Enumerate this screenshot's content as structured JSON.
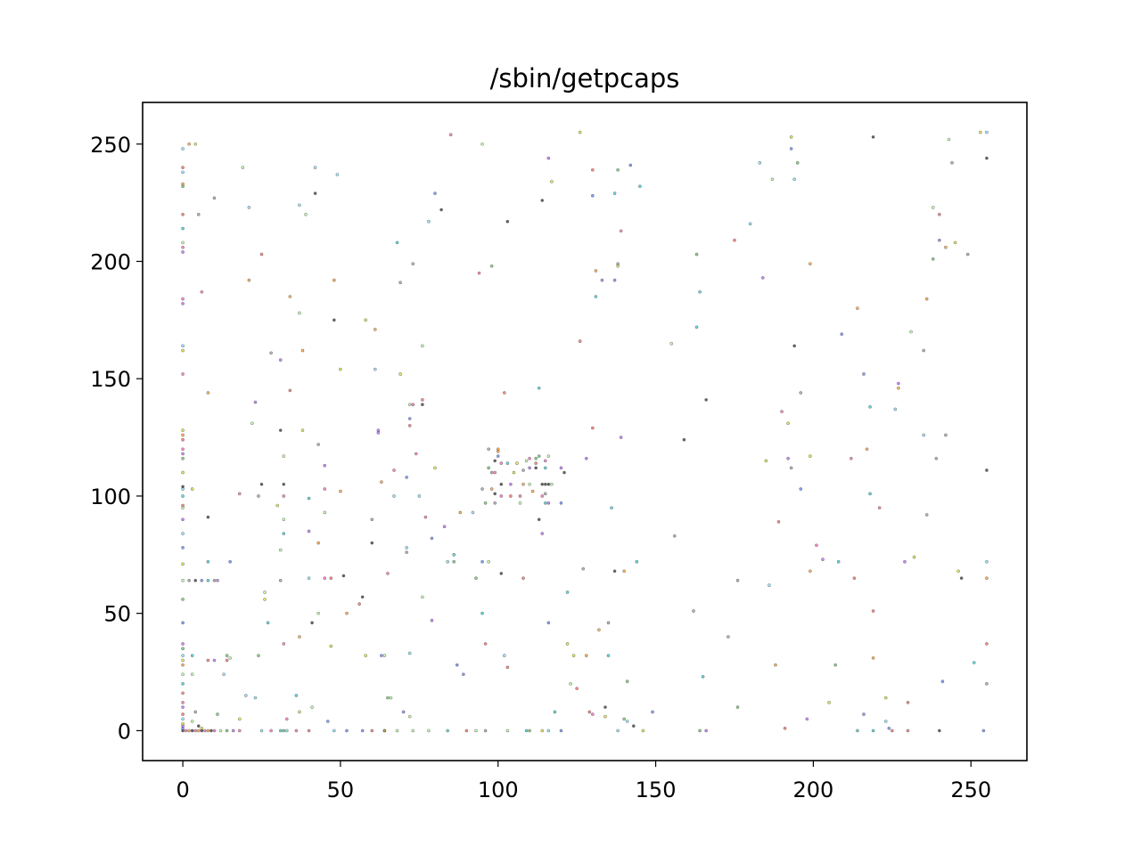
{
  "chart_data": {
    "type": "scatter",
    "title": "/sbin/getpcaps",
    "xlabel": "",
    "ylabel": "",
    "xlim": [
      -12.75,
      267.75
    ],
    "ylim": [
      -12.75,
      267.75
    ],
    "xticks": [
      0,
      50,
      100,
      150,
      200,
      250
    ],
    "yticks": [
      0,
      50,
      100,
      150,
      200,
      250
    ],
    "grid": false,
    "legend": "none",
    "marker_edge_color": "#333333",
    "marker_face_colors": [
      "#000000",
      "#ff4444",
      "#44bb44",
      "#4466ff",
      "#ff8800",
      "#aa44ff",
      "#00cccc",
      "#dddd00",
      "#ff44aa",
      "#888888",
      "#66ddff",
      "#aaff88"
    ],
    "points": [
      [
        0,
        0
      ],
      [
        1,
        0
      ],
      [
        2,
        0
      ],
      [
        3,
        0
      ],
      [
        4,
        0
      ],
      [
        5,
        0
      ],
      [
        6,
        0
      ],
      [
        7,
        0
      ],
      [
        8,
        0
      ],
      [
        9,
        0
      ],
      [
        10,
        0
      ],
      [
        12,
        0
      ],
      [
        14,
        0
      ],
      [
        16,
        0
      ],
      [
        18,
        0
      ],
      [
        25,
        0
      ],
      [
        28,
        0
      ],
      [
        31,
        0
      ],
      [
        32,
        0
      ],
      [
        33,
        0
      ],
      [
        36,
        0
      ],
      [
        40,
        0
      ],
      [
        48,
        0
      ],
      [
        52,
        0
      ],
      [
        57,
        0
      ],
      [
        60,
        0
      ],
      [
        64,
        0
      ],
      [
        68,
        0
      ],
      [
        73,
        0
      ],
      [
        78,
        0
      ],
      [
        84,
        0
      ],
      [
        90,
        0
      ],
      [
        93,
        0
      ],
      [
        96,
        0
      ],
      [
        103,
        0
      ],
      [
        109,
        0
      ],
      [
        110,
        0
      ],
      [
        114,
        0
      ],
      [
        116,
        0
      ],
      [
        120,
        0
      ],
      [
        138,
        0
      ],
      [
        146,
        0
      ],
      [
        164,
        0
      ],
      [
        166,
        0
      ],
      [
        214,
        0
      ],
      [
        219,
        0
      ],
      [
        225,
        0
      ],
      [
        230,
        0
      ],
      [
        240,
        0
      ],
      [
        254,
        0
      ],
      [
        0,
        1
      ],
      [
        0,
        2
      ],
      [
        0,
        3
      ],
      [
        0,
        5
      ],
      [
        0,
        7
      ],
      [
        0,
        10
      ],
      [
        0,
        12
      ],
      [
        0,
        16
      ],
      [
        0,
        20
      ],
      [
        0,
        24
      ],
      [
        0,
        28
      ],
      [
        0,
        30
      ],
      [
        0,
        32
      ],
      [
        0,
        35
      ],
      [
        0,
        37
      ],
      [
        0,
        46
      ],
      [
        0,
        56
      ],
      [
        0,
        64
      ],
      [
        0,
        71
      ],
      [
        0,
        78
      ],
      [
        0,
        84
      ],
      [
        0,
        90
      ],
      [
        0,
        95
      ],
      [
        0,
        96
      ],
      [
        0,
        100
      ],
      [
        0,
        103
      ],
      [
        0,
        104
      ],
      [
        0,
        110
      ],
      [
        0,
        116
      ],
      [
        0,
        118
      ],
      [
        0,
        120
      ],
      [
        0,
        124
      ],
      [
        0,
        126
      ],
      [
        0,
        128
      ],
      [
        0,
        152
      ],
      [
        0,
        162
      ],
      [
        0,
        164
      ],
      [
        0,
        182
      ],
      [
        0,
        184
      ],
      [
        0,
        204
      ],
      [
        0,
        206
      ],
      [
        0,
        208
      ],
      [
        0,
        214
      ],
      [
        0,
        220
      ],
      [
        0,
        232
      ],
      [
        0,
        233
      ],
      [
        0,
        238
      ],
      [
        0,
        240
      ],
      [
        0,
        248
      ],
      [
        2,
        64
      ],
      [
        4,
        64
      ],
      [
        6,
        64
      ],
      [
        8,
        64
      ],
      [
        10,
        64
      ],
      [
        11,
        64
      ],
      [
        4,
        8
      ],
      [
        3,
        4
      ],
      [
        5,
        2
      ],
      [
        6,
        1
      ],
      [
        3,
        32
      ],
      [
        3,
        24
      ],
      [
        3,
        103
      ],
      [
        2,
        250
      ],
      [
        4,
        250
      ],
      [
        5,
        220
      ],
      [
        6,
        187
      ],
      [
        8,
        144
      ],
      [
        8,
        91
      ],
      [
        8,
        72
      ],
      [
        8,
        30
      ],
      [
        10,
        227
      ],
      [
        10,
        30
      ],
      [
        11,
        7
      ],
      [
        13,
        24
      ],
      [
        14,
        32
      ],
      [
        14,
        30
      ],
      [
        15,
        72
      ],
      [
        15,
        31
      ],
      [
        18,
        5
      ],
      [
        18,
        101
      ],
      [
        19,
        240
      ],
      [
        20,
        15
      ],
      [
        21,
        223
      ],
      [
        21,
        192
      ],
      [
        22,
        131
      ],
      [
        23,
        14
      ],
      [
        23,
        140
      ],
      [
        24,
        100
      ],
      [
        24,
        32
      ],
      [
        25,
        203
      ],
      [
        25,
        105
      ],
      [
        26,
        56
      ],
      [
        26,
        59
      ],
      [
        27,
        46
      ],
      [
        28,
        161
      ],
      [
        30,
        96
      ],
      [
        31,
        158
      ],
      [
        31,
        128
      ],
      [
        31,
        64
      ],
      [
        31,
        77
      ],
      [
        32,
        117
      ],
      [
        32,
        105
      ],
      [
        32,
        100
      ],
      [
        32,
        90
      ],
      [
        32,
        84
      ],
      [
        32,
        37
      ],
      [
        33,
        5
      ],
      [
        34,
        185
      ],
      [
        34,
        145
      ],
      [
        36,
        15
      ],
      [
        37,
        8
      ],
      [
        37,
        40
      ],
      [
        37,
        178
      ],
      [
        37,
        224
      ],
      [
        38,
        162
      ],
      [
        38,
        128
      ],
      [
        39,
        220
      ],
      [
        40,
        99
      ],
      [
        40,
        85
      ],
      [
        40,
        65
      ],
      [
        41,
        10
      ],
      [
        41,
        46
      ],
      [
        42,
        240
      ],
      [
        42,
        229
      ],
      [
        43,
        122
      ],
      [
        43,
        80
      ],
      [
        43,
        50
      ],
      [
        45,
        113
      ],
      [
        45,
        103
      ],
      [
        45,
        93
      ],
      [
        45,
        65
      ],
      [
        46,
        4
      ],
      [
        47,
        36
      ],
      [
        47,
        65
      ],
      [
        48,
        192
      ],
      [
        48,
        175
      ],
      [
        49,
        237
      ],
      [
        50,
        154
      ],
      [
        50,
        102
      ],
      [
        51,
        66
      ],
      [
        52,
        50
      ],
      [
        56,
        54
      ],
      [
        57,
        57
      ],
      [
        58,
        32
      ],
      [
        58,
        175
      ],
      [
        60,
        90
      ],
      [
        60,
        80
      ],
      [
        61,
        154
      ],
      [
        61,
        171
      ],
      [
        62,
        128
      ],
      [
        62,
        127
      ],
      [
        63,
        106
      ],
      [
        63,
        32
      ],
      [
        64,
        32
      ],
      [
        64,
        0
      ],
      [
        65,
        14
      ],
      [
        65,
        67
      ],
      [
        66,
        14
      ],
      [
        67,
        111
      ],
      [
        67,
        100
      ],
      [
        68,
        208
      ],
      [
        69,
        191
      ],
      [
        69,
        152
      ],
      [
        70,
        8
      ],
      [
        71,
        108
      ],
      [
        71,
        78
      ],
      [
        71,
        76
      ],
      [
        72,
        33
      ],
      [
        72,
        133
      ],
      [
        72,
        130
      ],
      [
        72,
        139
      ],
      [
        72,
        6
      ],
      [
        73,
        139
      ],
      [
        73,
        199
      ],
      [
        74,
        118
      ],
      [
        75,
        100
      ],
      [
        76,
        57
      ],
      [
        76,
        164
      ],
      [
        76,
        141
      ],
      [
        76,
        139
      ],
      [
        77,
        91
      ],
      [
        78,
        217
      ],
      [
        79,
        82
      ],
      [
        79,
        47
      ],
      [
        80,
        229
      ],
      [
        80,
        112
      ],
      [
        82,
        222
      ],
      [
        83,
        87
      ],
      [
        84,
        72
      ],
      [
        85,
        254
      ],
      [
        86,
        72
      ],
      [
        86,
        75
      ],
      [
        87,
        28
      ],
      [
        88,
        93
      ],
      [
        89,
        24
      ],
      [
        92,
        93
      ],
      [
        93,
        65
      ],
      [
        94,
        195
      ],
      [
        95,
        250
      ],
      [
        95,
        103
      ],
      [
        95,
        72
      ],
      [
        95,
        50
      ],
      [
        96,
        37
      ],
      [
        96,
        97
      ],
      [
        97,
        120
      ],
      [
        97,
        112
      ],
      [
        97,
        72
      ],
      [
        98,
        110
      ],
      [
        98,
        198
      ],
      [
        98,
        103
      ],
      [
        99,
        115
      ],
      [
        99,
        110
      ],
      [
        99,
        101
      ],
      [
        99,
        97
      ],
      [
        100,
        120
      ],
      [
        100,
        119
      ],
      [
        100,
        117
      ],
      [
        101,
        114
      ],
      [
        101,
        105
      ],
      [
        101,
        100
      ],
      [
        101,
        67
      ],
      [
        102,
        144
      ],
      [
        102,
        32
      ],
      [
        103,
        27
      ],
      [
        103,
        217
      ],
      [
        103,
        114
      ],
      [
        104,
        105
      ],
      [
        104,
        100
      ],
      [
        105,
        110
      ],
      [
        106,
        114
      ],
      [
        107,
        100
      ],
      [
        107,
        97
      ],
      [
        108,
        111
      ],
      [
        108,
        105
      ],
      [
        108,
        65
      ],
      [
        109,
        115
      ],
      [
        110,
        116
      ],
      [
        110,
        112
      ],
      [
        110,
        105
      ],
      [
        111,
        102
      ],
      [
        112,
        116
      ],
      [
        112,
        114
      ],
      [
        112,
        112
      ],
      [
        113,
        146
      ],
      [
        113,
        117
      ],
      [
        113,
        90
      ],
      [
        114,
        226
      ],
      [
        114,
        105
      ],
      [
        114,
        100
      ],
      [
        114,
        84
      ],
      [
        115,
        115
      ],
      [
        115,
        112
      ],
      [
        115,
        105
      ],
      [
        115,
        101
      ],
      [
        115,
        97
      ],
      [
        116,
        244
      ],
      [
        116,
        117
      ],
      [
        116,
        105
      ],
      [
        116,
        97
      ],
      [
        116,
        46
      ],
      [
        117,
        234
      ],
      [
        117,
        105
      ],
      [
        118,
        8
      ],
      [
        120,
        112
      ],
      [
        120,
        97
      ],
      [
        121,
        110
      ],
      [
        122,
        37
      ],
      [
        122,
        59
      ],
      [
        123,
        20
      ],
      [
        124,
        32
      ],
      [
        125,
        18
      ],
      [
        126,
        166
      ],
      [
        126,
        255
      ],
      [
        127,
        69
      ],
      [
        128,
        32
      ],
      [
        128,
        116
      ],
      [
        129,
        8
      ],
      [
        130,
        7
      ],
      [
        130,
        239
      ],
      [
        130,
        228
      ],
      [
        130,
        129
      ],
      [
        131,
        196
      ],
      [
        131,
        185
      ],
      [
        132,
        43
      ],
      [
        133,
        192
      ],
      [
        134,
        6
      ],
      [
        134,
        10
      ],
      [
        135,
        32
      ],
      [
        135,
        46
      ],
      [
        136,
        95
      ],
      [
        137,
        192
      ],
      [
        137,
        68
      ],
      [
        137,
        229
      ],
      [
        138,
        198
      ],
      [
        138,
        199
      ],
      [
        138,
        239
      ],
      [
        139,
        213
      ],
      [
        139,
        125
      ],
      [
        140,
        68
      ],
      [
        140,
        5
      ],
      [
        141,
        21
      ],
      [
        141,
        4
      ],
      [
        142,
        241
      ],
      [
        143,
        2
      ],
      [
        144,
        72
      ],
      [
        145,
        232
      ],
      [
        149,
        8
      ],
      [
        155,
        165
      ],
      [
        156,
        83
      ],
      [
        159,
        124
      ],
      [
        162,
        51
      ],
      [
        163,
        172
      ],
      [
        163,
        203
      ],
      [
        164,
        187
      ],
      [
        165,
        23
      ],
      [
        166,
        141
      ],
      [
        173,
        40
      ],
      [
        175,
        209
      ],
      [
        176,
        10
      ],
      [
        176,
        64
      ],
      [
        180,
        216
      ],
      [
        183,
        242
      ],
      [
        184,
        193
      ],
      [
        185,
        115
      ],
      [
        186,
        62
      ],
      [
        187,
        235
      ],
      [
        188,
        28
      ],
      [
        189,
        89
      ],
      [
        190,
        136
      ],
      [
        191,
        1
      ],
      [
        192,
        131
      ],
      [
        192,
        116
      ],
      [
        193,
        112
      ],
      [
        193,
        253
      ],
      [
        193,
        248
      ],
      [
        194,
        235
      ],
      [
        194,
        164
      ],
      [
        195,
        242
      ],
      [
        196,
        103
      ],
      [
        196,
        144
      ],
      [
        198,
        5
      ],
      [
        199,
        68
      ],
      [
        199,
        199
      ],
      [
        199,
        117
      ],
      [
        201,
        79
      ],
      [
        203,
        73
      ],
      [
        205,
        12
      ],
      [
        207,
        28
      ],
      [
        208,
        72
      ],
      [
        209,
        169
      ],
      [
        212,
        116
      ],
      [
        213,
        65
      ],
      [
        214,
        180
      ],
      [
        216,
        152
      ],
      [
        216,
        7
      ],
      [
        217,
        120
      ],
      [
        218,
        138
      ],
      [
        218,
        101
      ],
      [
        219,
        31
      ],
      [
        219,
        51
      ],
      [
        219,
        253
      ],
      [
        221,
        95
      ],
      [
        223,
        14
      ],
      [
        223,
        4
      ],
      [
        224,
        1
      ],
      [
        226,
        137
      ],
      [
        227,
        148
      ],
      [
        227,
        146
      ],
      [
        229,
        72
      ],
      [
        230,
        12
      ],
      [
        231,
        170
      ],
      [
        232,
        74
      ],
      [
        235,
        162
      ],
      [
        235,
        126
      ],
      [
        236,
        184
      ],
      [
        236,
        92
      ],
      [
        238,
        223
      ],
      [
        238,
        201
      ],
      [
        239,
        116
      ],
      [
        240,
        220
      ],
      [
        240,
        209
      ],
      [
        241,
        21
      ],
      [
        242,
        206
      ],
      [
        242,
        126
      ],
      [
        243,
        252
      ],
      [
        244,
        242
      ],
      [
        245,
        208
      ],
      [
        246,
        68
      ],
      [
        247,
        65
      ],
      [
        249,
        203
      ],
      [
        251,
        29
      ],
      [
        253,
        255
      ],
      [
        255,
        255
      ],
      [
        255,
        244
      ],
      [
        255,
        111
      ],
      [
        255,
        72
      ],
      [
        255,
        65
      ],
      [
        255,
        37
      ],
      [
        255,
        20
      ]
    ]
  }
}
